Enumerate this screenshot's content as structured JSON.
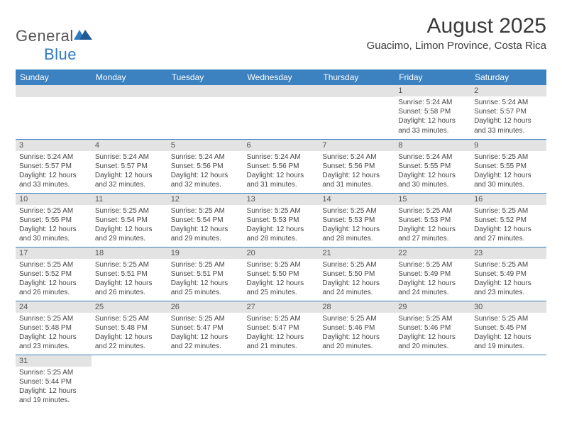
{
  "brand": {
    "part1": "General",
    "part2": "Blue"
  },
  "title": "August 2025",
  "location": "Guacimo, Limon Province, Costa Rica",
  "colors": {
    "header_bg": "#3c81c0",
    "header_text": "#ffffff",
    "daynum_bg": "#e3e3e3",
    "divider": "#3c81c0",
    "brand_gray": "#555555",
    "brand_blue": "#2f7abf"
  },
  "day_labels": [
    "Sunday",
    "Monday",
    "Tuesday",
    "Wednesday",
    "Thursday",
    "Friday",
    "Saturday"
  ],
  "weeks": [
    [
      null,
      null,
      null,
      null,
      null,
      {
        "n": "1",
        "sunrise": "5:24 AM",
        "sunset": "5:58 PM",
        "dl_h": "12",
        "dl_m": "33"
      },
      {
        "n": "2",
        "sunrise": "5:24 AM",
        "sunset": "5:57 PM",
        "dl_h": "12",
        "dl_m": "33"
      }
    ],
    [
      {
        "n": "3",
        "sunrise": "5:24 AM",
        "sunset": "5:57 PM",
        "dl_h": "12",
        "dl_m": "33"
      },
      {
        "n": "4",
        "sunrise": "5:24 AM",
        "sunset": "5:57 PM",
        "dl_h": "12",
        "dl_m": "32"
      },
      {
        "n": "5",
        "sunrise": "5:24 AM",
        "sunset": "5:56 PM",
        "dl_h": "12",
        "dl_m": "32"
      },
      {
        "n": "6",
        "sunrise": "5:24 AM",
        "sunset": "5:56 PM",
        "dl_h": "12",
        "dl_m": "31"
      },
      {
        "n": "7",
        "sunrise": "5:24 AM",
        "sunset": "5:56 PM",
        "dl_h": "12",
        "dl_m": "31"
      },
      {
        "n": "8",
        "sunrise": "5:24 AM",
        "sunset": "5:55 PM",
        "dl_h": "12",
        "dl_m": "30"
      },
      {
        "n": "9",
        "sunrise": "5:25 AM",
        "sunset": "5:55 PM",
        "dl_h": "12",
        "dl_m": "30"
      }
    ],
    [
      {
        "n": "10",
        "sunrise": "5:25 AM",
        "sunset": "5:55 PM",
        "dl_h": "12",
        "dl_m": "30"
      },
      {
        "n": "11",
        "sunrise": "5:25 AM",
        "sunset": "5:54 PM",
        "dl_h": "12",
        "dl_m": "29"
      },
      {
        "n": "12",
        "sunrise": "5:25 AM",
        "sunset": "5:54 PM",
        "dl_h": "12",
        "dl_m": "29"
      },
      {
        "n": "13",
        "sunrise": "5:25 AM",
        "sunset": "5:53 PM",
        "dl_h": "12",
        "dl_m": "28"
      },
      {
        "n": "14",
        "sunrise": "5:25 AM",
        "sunset": "5:53 PM",
        "dl_h": "12",
        "dl_m": "28"
      },
      {
        "n": "15",
        "sunrise": "5:25 AM",
        "sunset": "5:53 PM",
        "dl_h": "12",
        "dl_m": "27"
      },
      {
        "n": "16",
        "sunrise": "5:25 AM",
        "sunset": "5:52 PM",
        "dl_h": "12",
        "dl_m": "27"
      }
    ],
    [
      {
        "n": "17",
        "sunrise": "5:25 AM",
        "sunset": "5:52 PM",
        "dl_h": "12",
        "dl_m": "26"
      },
      {
        "n": "18",
        "sunrise": "5:25 AM",
        "sunset": "5:51 PM",
        "dl_h": "12",
        "dl_m": "26"
      },
      {
        "n": "19",
        "sunrise": "5:25 AM",
        "sunset": "5:51 PM",
        "dl_h": "12",
        "dl_m": "25"
      },
      {
        "n": "20",
        "sunrise": "5:25 AM",
        "sunset": "5:50 PM",
        "dl_h": "12",
        "dl_m": "25"
      },
      {
        "n": "21",
        "sunrise": "5:25 AM",
        "sunset": "5:50 PM",
        "dl_h": "12",
        "dl_m": "24"
      },
      {
        "n": "22",
        "sunrise": "5:25 AM",
        "sunset": "5:49 PM",
        "dl_h": "12",
        "dl_m": "24"
      },
      {
        "n": "23",
        "sunrise": "5:25 AM",
        "sunset": "5:49 PM",
        "dl_h": "12",
        "dl_m": "23"
      }
    ],
    [
      {
        "n": "24",
        "sunrise": "5:25 AM",
        "sunset": "5:48 PM",
        "dl_h": "12",
        "dl_m": "23"
      },
      {
        "n": "25",
        "sunrise": "5:25 AM",
        "sunset": "5:48 PM",
        "dl_h": "12",
        "dl_m": "22"
      },
      {
        "n": "26",
        "sunrise": "5:25 AM",
        "sunset": "5:47 PM",
        "dl_h": "12",
        "dl_m": "22"
      },
      {
        "n": "27",
        "sunrise": "5:25 AM",
        "sunset": "5:47 PM",
        "dl_h": "12",
        "dl_m": "21"
      },
      {
        "n": "28",
        "sunrise": "5:25 AM",
        "sunset": "5:46 PM",
        "dl_h": "12",
        "dl_m": "20"
      },
      {
        "n": "29",
        "sunrise": "5:25 AM",
        "sunset": "5:46 PM",
        "dl_h": "12",
        "dl_m": "20"
      },
      {
        "n": "30",
        "sunrise": "5:25 AM",
        "sunset": "5:45 PM",
        "dl_h": "12",
        "dl_m": "19"
      }
    ],
    [
      {
        "n": "31",
        "sunrise": "5:25 AM",
        "sunset": "5:44 PM",
        "dl_h": "12",
        "dl_m": "19"
      },
      null,
      null,
      null,
      null,
      null,
      null
    ]
  ],
  "labels": {
    "sunrise": "Sunrise:",
    "sunset": "Sunset:",
    "daylight": "Daylight:",
    "hours": "hours",
    "and": "and",
    "minutes": "minutes."
  }
}
